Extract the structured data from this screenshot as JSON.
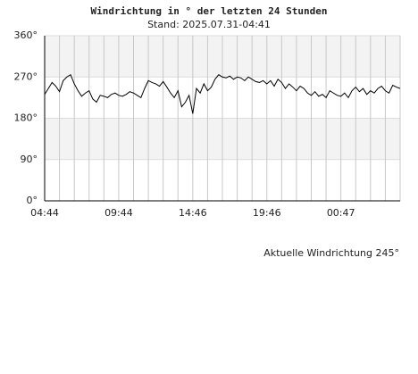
{
  "chart_data": {
    "type": "line",
    "title": "Windrichtung in ° der letzten 24 Stunden",
    "subtitle": "Stand: 2025.07.31-04:41",
    "annotation": "Aktuelle Windrichtung 245°",
    "categories": [
      "04:44",
      null,
      null,
      null,
      null,
      null,
      null,
      null,
      null,
      null,
      null,
      null,
      null,
      null,
      null,
      null,
      null,
      null,
      null,
      null,
      "09:44",
      null,
      null,
      null,
      null,
      null,
      null,
      null,
      null,
      null,
      null,
      null,
      null,
      null,
      null,
      null,
      null,
      null,
      null,
      null,
      "14:46",
      null,
      null,
      null,
      null,
      null,
      null,
      null,
      null,
      null,
      null,
      null,
      null,
      null,
      null,
      null,
      null,
      null,
      null,
      null,
      "19:46",
      null,
      null,
      null,
      null,
      null,
      null,
      null,
      null,
      null,
      null,
      null,
      null,
      null,
      null,
      null,
      null,
      null,
      null,
      null,
      "00:47",
      null,
      null,
      null,
      null,
      null,
      null,
      null,
      null,
      null,
      null,
      null,
      null,
      null,
      null,
      null,
      null
    ],
    "series": [
      {
        "color": "#000000",
        "values": [
          232,
          245,
          258,
          250,
          238,
          262,
          270,
          275,
          255,
          240,
          228,
          235,
          240,
          222,
          215,
          230,
          228,
          225,
          232,
          235,
          230,
          228,
          232,
          238,
          235,
          230,
          225,
          245,
          262,
          258,
          255,
          250,
          260,
          248,
          235,
          225,
          240,
          205,
          215,
          230,
          190,
          245,
          235,
          255,
          240,
          248,
          265,
          275,
          270,
          268,
          272,
          265,
          270,
          268,
          262,
          270,
          265,
          260,
          258,
          262,
          255,
          262,
          250,
          265,
          258,
          245,
          255,
          248,
          240,
          250,
          245,
          235,
          230,
          238,
          228,
          232,
          225,
          240,
          235,
          230,
          228,
          235,
          225,
          240,
          248,
          238,
          245,
          232,
          240,
          235,
          245,
          250,
          240,
          235,
          252,
          248,
          245
        ]
      }
    ],
    "ylim": [
      0,
      360
    ],
    "yticks": [
      {
        "value": 0,
        "label": "0°"
      },
      {
        "value": 90,
        "label": "90°"
      },
      {
        "value": 180,
        "label": "180°"
      },
      {
        "value": 270,
        "label": "270°"
      },
      {
        "value": 360,
        "label": "360°"
      }
    ],
    "grid": true,
    "band_color": "#f3f3f3"
  }
}
